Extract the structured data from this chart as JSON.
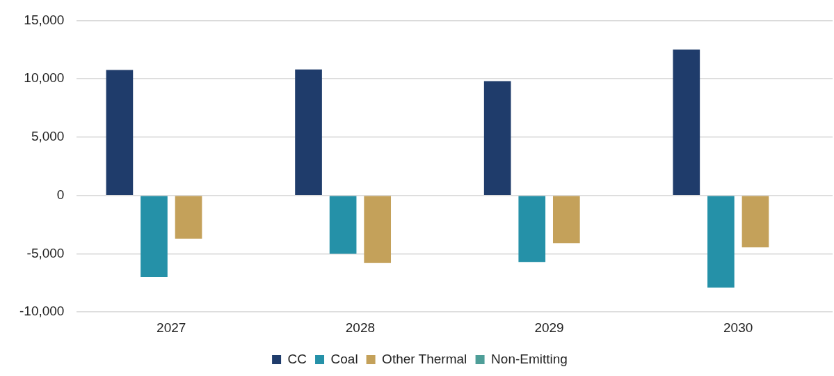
{
  "chart_data": {
    "type": "bar",
    "categories": [
      "2027",
      "2028",
      "2029",
      "2030"
    ],
    "series": [
      {
        "name": "CC",
        "color": "#1f3c6b",
        "values": [
          10750,
          10800,
          9800,
          12500
        ]
      },
      {
        "name": "Coal",
        "color": "#2591a8",
        "values": [
          -7000,
          -5000,
          -5700,
          -7900
        ]
      },
      {
        "name": "Other Thermal",
        "color": "#c4a15a",
        "values": [
          -3700,
          -5800,
          -4100,
          -4450
        ]
      },
      {
        "name": "Non-Emitting",
        "color": "#4e9e98",
        "values": [
          0,
          0,
          0,
          0
        ]
      }
    ],
    "ylim": [
      -10000,
      15000
    ],
    "yticks": [
      {
        "value": -10000,
        "label": "-10,000"
      },
      {
        "value": -5000,
        "label": "-5,000"
      },
      {
        "value": 0,
        "label": "0"
      },
      {
        "value": 5000,
        "label": "5,000"
      },
      {
        "value": 10000,
        "label": "10,000"
      },
      {
        "value": 15000,
        "label": "15,000"
      }
    ],
    "grid": "y",
    "legend": "bottom"
  }
}
